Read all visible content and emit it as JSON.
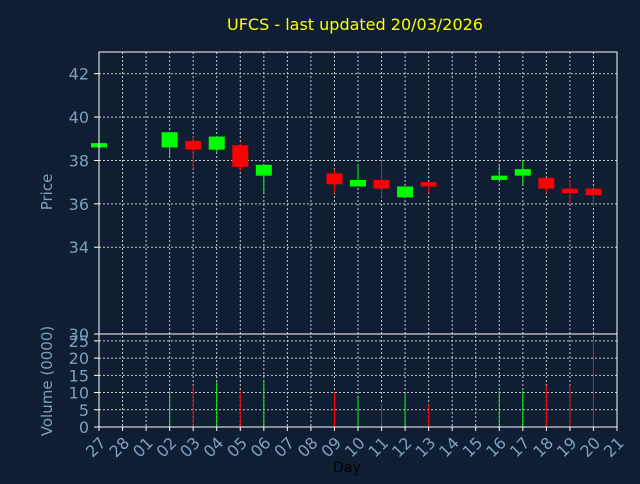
{
  "chart_data": {
    "type": "candlestick",
    "title": "UFCS - last updated 20/03/2026",
    "xlabel": "Day",
    "price_panel": {
      "ylabel": "Price",
      "ylim": [
        30,
        43
      ],
      "yticks": [
        30,
        34,
        36,
        38,
        40,
        42
      ]
    },
    "volume_panel": {
      "ylabel": "Volume (0000)",
      "ylim": [
        0,
        27
      ],
      "yticks": [
        0,
        5,
        10,
        15,
        20,
        25
      ]
    },
    "x_tick_labels": [
      "27",
      "28",
      "01",
      "02",
      "03",
      "04",
      "05",
      "06",
      "07",
      "08",
      "09",
      "10",
      "11",
      "12",
      "13",
      "14",
      "15",
      "16",
      "17",
      "18",
      "19",
      "20",
      "21"
    ],
    "grid": true,
    "colors": {
      "background": "#0f1e32",
      "title": "#ffff00",
      "axis_text": "#7f9fbf",
      "axis_line": "#ffffff",
      "grid": "#c8c8c8",
      "up": "#00ff00",
      "down": "#ff0000"
    },
    "candles": [
      {
        "day": "27",
        "open": 38.6,
        "high": 38.8,
        "low": 38.6,
        "close": 38.8,
        "volume": 0.3
      },
      {
        "day": "02",
        "open": 38.6,
        "high": 39.3,
        "low": 38.2,
        "close": 39.3,
        "volume": 10.5
      },
      {
        "day": "03",
        "open": 38.9,
        "high": 39.1,
        "low": 37.6,
        "close": 38.5,
        "volume": 12.0
      },
      {
        "day": "04",
        "open": 38.5,
        "high": 39.1,
        "low": 38.4,
        "close": 39.1,
        "volume": 13.0
      },
      {
        "day": "05",
        "open": 38.7,
        "high": 38.8,
        "low": 37.5,
        "close": 37.7,
        "volume": 10.5
      },
      {
        "day": "06",
        "open": 37.3,
        "high": 37.8,
        "low": 36.5,
        "close": 37.8,
        "volume": 13.5
      },
      {
        "day": "09",
        "open": 37.4,
        "high": 37.6,
        "low": 36.5,
        "close": 36.9,
        "volume": 10.0
      },
      {
        "day": "10",
        "open": 36.8,
        "high": 37.8,
        "low": 36.8,
        "close": 37.1,
        "volume": 8.5
      },
      {
        "day": "11",
        "open": 37.1,
        "high": 38.0,
        "low": 36.3,
        "close": 36.7,
        "volume": 7.0
      },
      {
        "day": "12",
        "open": 36.3,
        "high": 36.8,
        "low": 36.3,
        "close": 36.8,
        "volume": 9.5
      },
      {
        "day": "13",
        "open": 37.0,
        "high": 37.0,
        "low": 36.5,
        "close": 36.8,
        "volume": 6.5
      },
      {
        "day": "16",
        "open": 37.1,
        "high": 37.8,
        "low": 37.1,
        "close": 37.3,
        "volume": 10.5
      },
      {
        "day": "17",
        "open": 37.3,
        "high": 38.0,
        "low": 36.9,
        "close": 37.6,
        "volume": 10.5
      },
      {
        "day": "18",
        "open": 37.2,
        "high": 37.2,
        "low": 36.5,
        "close": 36.7,
        "volume": 12.0
      },
      {
        "day": "19",
        "open": 36.7,
        "high": 37.1,
        "low": 36.0,
        "close": 36.5,
        "volume": 12.0
      },
      {
        "day": "20",
        "open": 36.7,
        "high": 36.7,
        "low": 35.9,
        "close": 36.4,
        "volume": 26.0
      }
    ]
  }
}
